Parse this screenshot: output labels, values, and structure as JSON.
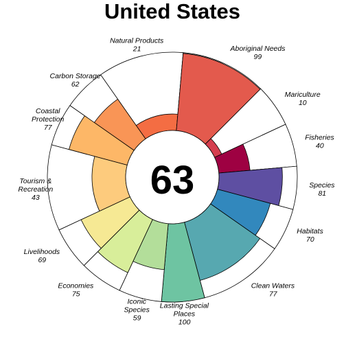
{
  "chart_data": {
    "type": "flower",
    "title": "United States",
    "center_score": "63",
    "value_range": [
      0,
      100
    ],
    "petals": [
      {
        "name": "Natural Products",
        "value": 21,
        "color": "#F46D43",
        "weight": 1.0,
        "label_lines": [
          "Natural Products"
        ],
        "label_align": "middle"
      },
      {
        "name": "Aboriginal Needs",
        "value": 99,
        "color": "#E35A4D",
        "weight": 1.0,
        "label_lines": [
          "Aboriginal Needs"
        ],
        "label_align": "start"
      },
      {
        "name": "Mariculture",
        "value": 10,
        "color": "#D53E4F",
        "weight": 0.5,
        "label_lines": [
          "Mariculture"
        ],
        "label_align": "start"
      },
      {
        "name": "Fisheries",
        "value": 40,
        "color": "#9E0142",
        "weight": 0.5,
        "label_lines": [
          "Fisheries"
        ],
        "label_align": "start"
      },
      {
        "name": "Species",
        "value": 81,
        "color": "#5E4FA2",
        "weight": 0.5,
        "label_lines": [
          "Species"
        ],
        "label_align": "start"
      },
      {
        "name": "Habitats",
        "value": 70,
        "color": "#3288BD",
        "weight": 0.5,
        "label_lines": [
          "Habitats"
        ],
        "label_align": "start"
      },
      {
        "name": "Clean Waters",
        "value": 77,
        "color": "#57A8B0",
        "weight": 1.0,
        "label_lines": [
          "Clean Waters"
        ],
        "label_align": "start"
      },
      {
        "name": "Lasting Special Places",
        "value": 100,
        "color": "#6EC4A2",
        "weight": 0.5,
        "label_lines": [
          "Lasting Special",
          "Places"
        ],
        "label_align": "middle"
      },
      {
        "name": "Iconic Species",
        "value": 59,
        "color": "#B3DE9A",
        "weight": 0.5,
        "label_lines": [
          "Iconic",
          "Species"
        ],
        "label_align": "middle"
      },
      {
        "name": "Economies",
        "value": 75,
        "color": "#D8EE9A",
        "weight": 0.5,
        "label_lines": [
          "Economies"
        ],
        "label_align": "end"
      },
      {
        "name": "Livelihoods",
        "value": 69,
        "color": "#F6E994",
        "weight": 0.5,
        "label_lines": [
          "Livelihoods"
        ],
        "label_align": "end"
      },
      {
        "name": "Tourism & Recreation",
        "value": 43,
        "color": "#FDCB7D",
        "weight": 1.0,
        "label_lines": [
          "Tourism &",
          "Recreation"
        ],
        "label_align": "middle"
      },
      {
        "name": "Coastal Protection",
        "value": 77,
        "color": "#FDB767",
        "weight": 0.5,
        "label_lines": [
          "Coastal",
          "Protection"
        ],
        "label_align": "middle"
      },
      {
        "name": "Carbon Storage",
        "value": 62,
        "color": "#F99556",
        "weight": 0.5,
        "label_lines": [
          "Carbon Storage"
        ],
        "label_align": "middle"
      }
    ]
  }
}
